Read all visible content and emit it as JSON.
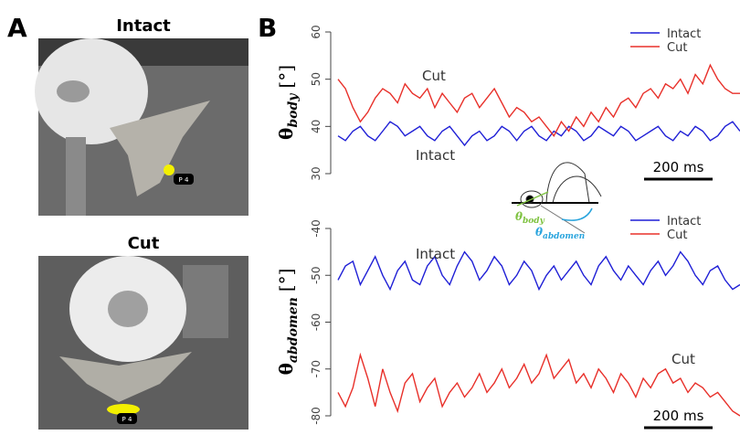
{
  "panels": {
    "a": "A",
    "b": "B"
  },
  "photos": [
    {
      "title": "Intact",
      "tag": "P 4"
    },
    {
      "title": "Cut",
      "tag": "P 4"
    }
  ],
  "inset": {
    "body": {
      "symbol": "θ",
      "subscript": "body"
    },
    "abdomen": {
      "symbol": "θ",
      "subscript": "abdomen"
    }
  },
  "chart_data": [
    {
      "type": "line",
      "y_label": {
        "symbol": "θ",
        "subscript": "body",
        "unit": "[°]"
      },
      "ylim": [
        30,
        60
      ],
      "yticks": [
        30,
        40,
        50,
        60
      ],
      "legend": "upper right",
      "annotations": [
        "Cut",
        "Intact"
      ],
      "scale_bar": "200 ms",
      "series": [
        {
          "name": "Intact",
          "color": "#1f1fd6",
          "values": [
            38,
            37,
            39,
            40,
            38,
            37,
            39,
            41,
            40,
            38,
            39,
            40,
            38,
            37,
            39,
            40,
            38,
            36,
            38,
            39,
            37,
            38,
            40,
            39,
            37,
            39,
            40,
            38,
            37,
            39,
            38,
            40,
            39,
            37,
            38,
            40,
            39,
            38,
            40,
            39,
            37,
            38,
            39,
            40,
            38,
            37,
            39,
            38,
            40,
            39,
            37,
            38,
            40,
            41,
            39
          ]
        },
        {
          "name": "Cut",
          "color": "#e8302a",
          "values": [
            50,
            48,
            44,
            41,
            43,
            46,
            48,
            47,
            45,
            49,
            47,
            46,
            48,
            44,
            47,
            45,
            43,
            46,
            47,
            44,
            46,
            48,
            45,
            42,
            44,
            43,
            41,
            42,
            40,
            38,
            41,
            39,
            42,
            40,
            43,
            41,
            44,
            42,
            45,
            46,
            44,
            47,
            48,
            46,
            49,
            48,
            50,
            47,
            51,
            49,
            53,
            50,
            48,
            47,
            47
          ]
        }
      ]
    },
    {
      "type": "line",
      "y_label": {
        "symbol": "θ",
        "subscript": "abdomen",
        "unit": "[°]"
      },
      "ylim": [
        -80,
        -40
      ],
      "yticks": [
        -80,
        -70,
        -60,
        -50,
        -40
      ],
      "legend": "upper right",
      "annotations": [
        "Intact",
        "Cut"
      ],
      "scale_bar": "200 ms",
      "series": [
        {
          "name": "Intact",
          "color": "#1f1fd6",
          "values": [
            -51,
            -48,
            -47,
            -52,
            -49,
            -46,
            -50,
            -53,
            -49,
            -47,
            -51,
            -52,
            -48,
            -46,
            -50,
            -52,
            -48,
            -45,
            -47,
            -51,
            -49,
            -46,
            -48,
            -52,
            -50,
            -47,
            -49,
            -53,
            -50,
            -48,
            -51,
            -49,
            -47,
            -50,
            -52,
            -48,
            -46,
            -49,
            -51,
            -48,
            -50,
            -52,
            -49,
            -47,
            -50,
            -48,
            -45,
            -47,
            -50,
            -52,
            -49,
            -48,
            -51,
            -53,
            -52
          ]
        },
        {
          "name": "Cut",
          "color": "#e8302a",
          "values": [
            -75,
            -78,
            -74,
            -67,
            -72,
            -78,
            -70,
            -75,
            -79,
            -73,
            -71,
            -77,
            -74,
            -72,
            -78,
            -75,
            -73,
            -76,
            -74,
            -71,
            -75,
            -73,
            -70,
            -74,
            -72,
            -69,
            -73,
            -71,
            -67,
            -72,
            -70,
            -68,
            -73,
            -71,
            -74,
            -70,
            -72,
            -75,
            -71,
            -73,
            -76,
            -72,
            -74,
            -71,
            -70,
            -73,
            -72,
            -75,
            -73,
            -74,
            -76,
            -75,
            -77,
            -79,
            -80
          ]
        }
      ]
    }
  ]
}
